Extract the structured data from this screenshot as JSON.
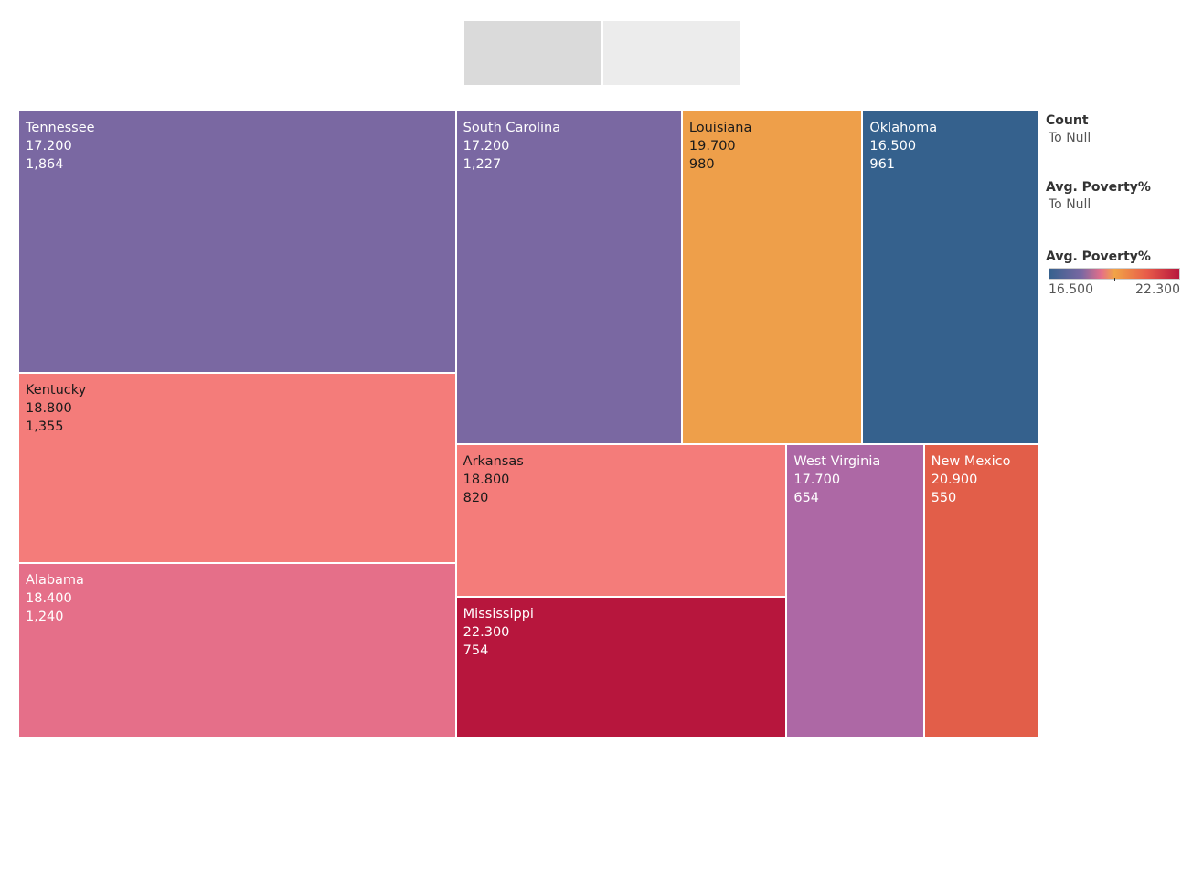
{
  "chart_data": {
    "type": "treemap",
    "size_measure": "Count",
    "color_measure": "Avg. Poverty%",
    "color_range": [
      16.5,
      22.3
    ],
    "items": [
      {
        "state": "Tennessee",
        "poverty": "17.200",
        "count": "1,864",
        "value": 1864,
        "color": "#7a68a2",
        "text_color": "#ffffff"
      },
      {
        "state": "Kentucky",
        "poverty": "18.800",
        "count": "1,355",
        "value": 1355,
        "color": "#f47c7a",
        "text_color": "#1a1a1a"
      },
      {
        "state": "Alabama",
        "poverty": "18.400",
        "count": "1,240",
        "value": 1240,
        "color": "#e56f89",
        "text_color": "#ffffff"
      },
      {
        "state": "South Carolina",
        "poverty": "17.200",
        "count": "1,227",
        "value": 1227,
        "color": "#7a68a2",
        "text_color": "#ffffff"
      },
      {
        "state": "Louisiana",
        "poverty": "19.700",
        "count": "980",
        "value": 980,
        "color": "#ee9f4a",
        "text_color": "#1a1a1a"
      },
      {
        "state": "Oklahoma",
        "poverty": "16.500",
        "count": "961",
        "value": 961,
        "color": "#35618d",
        "text_color": "#ffffff"
      },
      {
        "state": "Arkansas",
        "poverty": "18.800",
        "count": "820",
        "value": 820,
        "color": "#f47c7a",
        "text_color": "#1a1a1a"
      },
      {
        "state": "Mississippi",
        "poverty": "22.300",
        "count": "754",
        "value": 754,
        "color": "#b7163d",
        "text_color": "#ffffff"
      },
      {
        "state": "West Virginia",
        "poverty": "17.700",
        "count": "654",
        "value": 654,
        "color": "#ad68a5",
        "text_color": "#ffffff"
      },
      {
        "state": "New Mexico",
        "poverty": "20.900",
        "count": "550",
        "value": 550,
        "color": "#e25e49",
        "text_color": "#ffffff"
      }
    ]
  },
  "legend": {
    "count_title": "Count",
    "count_sub": "To Null",
    "poverty_title": "Avg. Poverty%",
    "poverty_sub": "To Null",
    "gradient_title": "Avg. Poverty%",
    "gradient_min": "16.500",
    "gradient_max": "22.300"
  }
}
